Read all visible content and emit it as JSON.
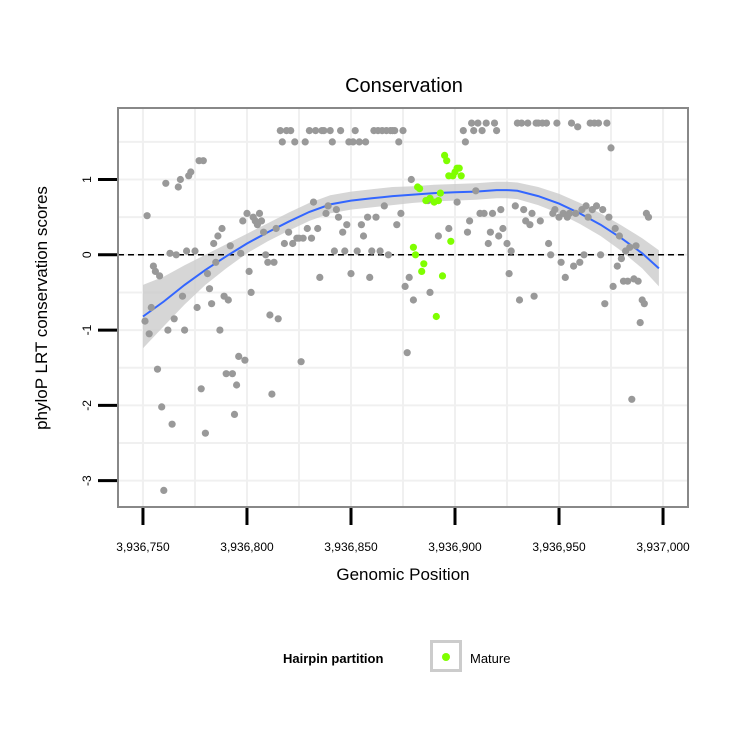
{
  "chart_data": {
    "type": "scatter",
    "title": "Conservation",
    "xlabel": "Genomic Position",
    "ylabel": "phyloP LRT conservation scores",
    "xlim": [
      3936738,
      3937012
    ],
    "ylim": [
      -3.35,
      1.95
    ],
    "x_ticks": [
      3936750,
      3936800,
      3936850,
      3936900,
      3936950,
      3937000
    ],
    "x_tick_labels": [
      "3,936,750",
      "3,936,800",
      "3,936,850",
      "3,936,900",
      "3,936,950",
      "3,937,000"
    ],
    "y_ticks": [
      -3,
      -2,
      -1,
      0,
      1
    ],
    "y_tick_labels": [
      "-3",
      "-2",
      "-1",
      "0",
      "1"
    ],
    "hline": 0,
    "grid": true,
    "legend_position": "bottom",
    "legend": {
      "title": "Hairpin partition",
      "entries": [
        {
          "label": "Mature",
          "color": "#7fff00"
        }
      ]
    },
    "colors": {
      "other": "#999999",
      "mature": "#7fff00",
      "smooth": "#3366ff",
      "ribbon": "#cccccc",
      "panel_background": "#ffffff",
      "grid": "#f0f0f0",
      "border": "#888888"
    },
    "series": [
      {
        "name": "",
        "color": "#999999",
        "points": [
          [
            3936751,
            -0.88
          ],
          [
            3936752,
            0.52
          ],
          [
            3936753,
            -1.05
          ],
          [
            3936754,
            -0.7
          ],
          [
            3936755,
            -0.15
          ],
          [
            3936756,
            -0.22
          ],
          [
            3936757,
            -1.52
          ],
          [
            3936758,
            -0.28
          ],
          [
            3936759,
            -2.02
          ],
          [
            3936760,
            -3.13
          ],
          [
            3936761,
            0.95
          ],
          [
            3936762,
            -1.0
          ],
          [
            3936763,
            0.02
          ],
          [
            3936764,
            -2.25
          ],
          [
            3936765,
            -0.85
          ],
          [
            3936766,
            0.0
          ],
          [
            3936767,
            0.9
          ],
          [
            3936768,
            1.0
          ],
          [
            3936769,
            -0.55
          ],
          [
            3936770,
            -1.0
          ],
          [
            3936771,
            0.05
          ],
          [
            3936772,
            1.05
          ],
          [
            3936773,
            1.1
          ],
          [
            3936775,
            0.05
          ],
          [
            3936776,
            -0.7
          ],
          [
            3936777,
            1.25
          ],
          [
            3936778,
            -1.78
          ],
          [
            3936779,
            1.25
          ],
          [
            3936780,
            -2.37
          ],
          [
            3936781,
            -0.25
          ],
          [
            3936782,
            -0.45
          ],
          [
            3936783,
            -0.65
          ],
          [
            3936784,
            0.15
          ],
          [
            3936785,
            -0.1
          ],
          [
            3936786,
            0.25
          ],
          [
            3936787,
            -1.0
          ],
          [
            3936788,
            0.35
          ],
          [
            3936789,
            -0.55
          ],
          [
            3936790,
            -1.58
          ],
          [
            3936791,
            -0.6
          ],
          [
            3936792,
            0.12
          ],
          [
            3936793,
            -1.58
          ],
          [
            3936794,
            -2.12
          ],
          [
            3936795,
            -1.73
          ],
          [
            3936796,
            -1.35
          ],
          [
            3936797,
            0.02
          ],
          [
            3936798,
            0.45
          ],
          [
            3936799,
            -1.4
          ],
          [
            3936800,
            0.55
          ],
          [
            3936801,
            -0.22
          ],
          [
            3936802,
            -0.5
          ],
          [
            3936803,
            0.5
          ],
          [
            3936804,
            0.45
          ],
          [
            3936805,
            0.4
          ],
          [
            3936806,
            0.55
          ],
          [
            3936807,
            0.45
          ],
          [
            3936808,
            0.3
          ],
          [
            3936809,
            0.0
          ],
          [
            3936810,
            -0.1
          ],
          [
            3936811,
            -0.8
          ],
          [
            3936812,
            -1.85
          ],
          [
            3936813,
            -0.1
          ],
          [
            3936814,
            0.35
          ],
          [
            3936815,
            -0.85
          ],
          [
            3936816,
            1.65
          ],
          [
            3936817,
            1.5
          ],
          [
            3936818,
            0.15
          ],
          [
            3936819,
            1.65
          ],
          [
            3936820,
            0.3
          ],
          [
            3936821,
            1.65
          ],
          [
            3936822,
            0.15
          ],
          [
            3936823,
            1.5
          ],
          [
            3936824,
            0.22
          ],
          [
            3936825,
            0.22
          ],
          [
            3936826,
            -1.42
          ],
          [
            3936827,
            0.22
          ],
          [
            3936828,
            1.5
          ],
          [
            3936829,
            0.35
          ],
          [
            3936830,
            1.65
          ],
          [
            3936831,
            0.22
          ],
          [
            3936832,
            0.7
          ],
          [
            3936833,
            1.65
          ],
          [
            3936834,
            0.35
          ],
          [
            3936835,
            -0.3
          ],
          [
            3936836,
            1.65
          ],
          [
            3936837,
            1.65
          ],
          [
            3936838,
            0.55
          ],
          [
            3936839,
            0.65
          ],
          [
            3936840,
            1.65
          ],
          [
            3936841,
            1.5
          ],
          [
            3936842,
            0.05
          ],
          [
            3936843,
            0.6
          ],
          [
            3936844,
            0.5
          ],
          [
            3936845,
            1.65
          ],
          [
            3936846,
            0.3
          ],
          [
            3936847,
            0.05
          ],
          [
            3936848,
            0.4
          ],
          [
            3936849,
            1.5
          ],
          [
            3936850,
            -0.25
          ],
          [
            3936851,
            1.5
          ],
          [
            3936852,
            1.65
          ],
          [
            3936853,
            0.05
          ],
          [
            3936854,
            1.5
          ],
          [
            3936855,
            0.4
          ],
          [
            3936856,
            0.25
          ],
          [
            3936857,
            1.5
          ],
          [
            3936858,
            0.5
          ],
          [
            3936859,
            -0.3
          ],
          [
            3936860,
            0.05
          ],
          [
            3936861,
            1.65
          ],
          [
            3936862,
            0.5
          ],
          [
            3936863,
            1.65
          ],
          [
            3936864,
            0.05
          ],
          [
            3936865,
            1.65
          ],
          [
            3936866,
            0.65
          ],
          [
            3936867,
            1.65
          ],
          [
            3936868,
            0.0
          ],
          [
            3936869,
            1.65
          ],
          [
            3936870,
            1.65
          ],
          [
            3936871,
            1.65
          ],
          [
            3936872,
            0.4
          ],
          [
            3936873,
            1.5
          ],
          [
            3936874,
            0.55
          ],
          [
            3936875,
            1.65
          ],
          [
            3936876,
            -0.42
          ],
          [
            3936877,
            -1.3
          ],
          [
            3936878,
            -0.3
          ],
          [
            3936879,
            1.0
          ],
          [
            3936880,
            -0.6
          ],
          [
            3936887,
            0.72
          ],
          [
            3936888,
            -0.5
          ],
          [
            3936892,
            0.25
          ],
          [
            3936897,
            0.35
          ],
          [
            3936901,
            0.7
          ],
          [
            3936904,
            1.65
          ],
          [
            3936905,
            1.5
          ],
          [
            3936906,
            0.3
          ],
          [
            3936907,
            0.45
          ],
          [
            3936908,
            1.75
          ],
          [
            3936909,
            1.65
          ],
          [
            3936910,
            0.85
          ],
          [
            3936911,
            1.75
          ],
          [
            3936912,
            0.55
          ],
          [
            3936913,
            1.65
          ],
          [
            3936914,
            0.55
          ],
          [
            3936915,
            1.75
          ],
          [
            3936916,
            0.15
          ],
          [
            3936917,
            0.3
          ],
          [
            3936918,
            0.55
          ],
          [
            3936919,
            1.75
          ],
          [
            3936920,
            1.65
          ],
          [
            3936921,
            0.25
          ],
          [
            3936922,
            0.6
          ],
          [
            3936923,
            0.35
          ],
          [
            3936925,
            0.15
          ],
          [
            3936926,
            -0.25
          ],
          [
            3936927,
            0.05
          ],
          [
            3936929,
            0.65
          ],
          [
            3936930,
            1.75
          ],
          [
            3936931,
            -0.6
          ],
          [
            3936932,
            1.75
          ],
          [
            3936933,
            0.6
          ],
          [
            3936934,
            0.45
          ],
          [
            3936935,
            1.75
          ],
          [
            3936936,
            0.4
          ],
          [
            3936937,
            0.55
          ],
          [
            3936938,
            -0.55
          ],
          [
            3936939,
            1.75
          ],
          [
            3936940,
            1.75
          ],
          [
            3936941,
            0.45
          ],
          [
            3936942,
            1.75
          ],
          [
            3936944,
            1.75
          ],
          [
            3936945,
            0.15
          ],
          [
            3936946,
            0.0
          ],
          [
            3936947,
            0.55
          ],
          [
            3936948,
            0.6
          ],
          [
            3936949,
            1.75
          ],
          [
            3936950,
            0.5
          ],
          [
            3936951,
            -0.1
          ],
          [
            3936952,
            0.55
          ],
          [
            3936953,
            -0.3
          ],
          [
            3936954,
            0.5
          ],
          [
            3936955,
            0.55
          ],
          [
            3936956,
            1.75
          ],
          [
            3936957,
            -0.15
          ],
          [
            3936958,
            0.55
          ],
          [
            3936959,
            1.7
          ],
          [
            3936960,
            -0.1
          ],
          [
            3936961,
            0.6
          ],
          [
            3936962,
            0.0
          ],
          [
            3936963,
            0.65
          ],
          [
            3936964,
            0.5
          ],
          [
            3936965,
            1.75
          ],
          [
            3936966,
            0.6
          ],
          [
            3936967,
            1.75
          ],
          [
            3936968,
            0.65
          ],
          [
            3936969,
            1.75
          ],
          [
            3936970,
            0.0
          ],
          [
            3936971,
            0.6
          ],
          [
            3936972,
            -0.65
          ],
          [
            3936973,
            1.75
          ],
          [
            3936974,
            0.5
          ],
          [
            3936975,
            1.42
          ],
          [
            3936976,
            -0.42
          ],
          [
            3936977,
            0.35
          ],
          [
            3936978,
            -0.15
          ],
          [
            3936979,
            0.25
          ],
          [
            3936980,
            -0.05
          ],
          [
            3936981,
            -0.35
          ],
          [
            3936982,
            0.05
          ],
          [
            3936983,
            -0.35
          ],
          [
            3936984,
            0.1
          ],
          [
            3936985,
            -1.92
          ],
          [
            3936986,
            -0.32
          ],
          [
            3936987,
            0.12
          ],
          [
            3936988,
            -0.35
          ],
          [
            3936989,
            -0.9
          ],
          [
            3936990,
            -0.6
          ],
          [
            3936991,
            -0.65
          ],
          [
            3936992,
            0.55
          ],
          [
            3936993,
            0.5
          ]
        ]
      },
      {
        "name": "Mature",
        "color": "#7fff00",
        "points": [
          [
            3936880,
            0.1
          ],
          [
            3936881,
            0.0
          ],
          [
            3936882,
            0.9
          ],
          [
            3936883,
            0.88
          ],
          [
            3936884,
            -0.22
          ],
          [
            3936885,
            -0.12
          ],
          [
            3936886,
            0.72
          ],
          [
            3936888,
            0.75
          ],
          [
            3936890,
            0.7
          ],
          [
            3936891,
            -0.82
          ],
          [
            3936892,
            0.72
          ],
          [
            3936893,
            0.82
          ],
          [
            3936894,
            -0.28
          ],
          [
            3936895,
            1.32
          ],
          [
            3936896,
            1.25
          ],
          [
            3936897,
            1.05
          ],
          [
            3936898,
            0.18
          ],
          [
            3936899,
            1.05
          ],
          [
            3936900,
            1.1
          ],
          [
            3936901,
            1.15
          ],
          [
            3936902,
            1.15
          ],
          [
            3936903,
            1.05
          ]
        ]
      }
    ],
    "smooth": {
      "x": [
        3936750,
        3936760,
        3936770,
        3936780,
        3936790,
        3936800,
        3936810,
        3936820,
        3936830,
        3936840,
        3936850,
        3936860,
        3936870,
        3936880,
        3936890,
        3936900,
        3936910,
        3936920,
        3936925,
        3936930,
        3936940,
        3936950,
        3936960,
        3936970,
        3936980,
        3936990,
        3936998
      ],
      "y": [
        -0.82,
        -0.62,
        -0.4,
        -0.2,
        -0.02,
        0.15,
        0.3,
        0.44,
        0.57,
        0.67,
        0.72,
        0.75,
        0.78,
        0.8,
        0.82,
        0.83,
        0.84,
        0.86,
        0.86,
        0.85,
        0.78,
        0.68,
        0.55,
        0.4,
        0.22,
        0.02,
        -0.18
      ],
      "se": [
        0.42,
        0.33,
        0.26,
        0.2,
        0.16,
        0.13,
        0.12,
        0.12,
        0.12,
        0.12,
        0.12,
        0.12,
        0.12,
        0.11,
        0.11,
        0.11,
        0.11,
        0.11,
        0.11,
        0.11,
        0.12,
        0.13,
        0.14,
        0.15,
        0.17,
        0.2,
        0.24
      ]
    }
  }
}
